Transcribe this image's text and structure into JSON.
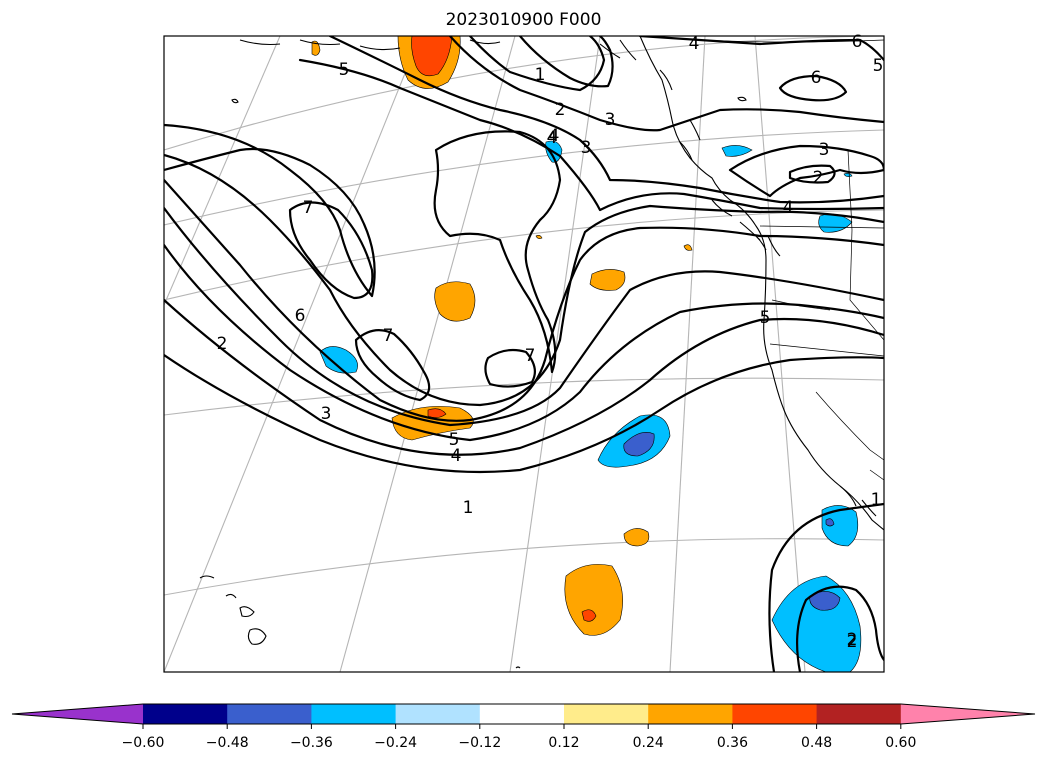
{
  "title": "2023010900 F000",
  "colorbar": {
    "colors": [
      "#9932cc",
      "#00008b",
      "#3a5fcd",
      "#00bfff",
      "#b0e2ff",
      "#ffffff",
      "#ffec8b",
      "#ffa500",
      "#ff4500",
      "#b22222",
      "#ff82ab"
    ],
    "tick_labels": [
      "−0.60",
      "−0.48",
      "−0.36",
      "−0.24",
      "−0.12",
      "0.12",
      "0.24",
      "0.36",
      "0.48",
      "0.60"
    ]
  },
  "contour_labels": [
    "1",
    "2",
    "3",
    "4",
    "5",
    "6",
    "7",
    "7",
    "7",
    "6",
    "5",
    "4",
    "3",
    "2",
    "1",
    "2",
    "3",
    "4",
    "5",
    "6",
    "5",
    "4",
    "3",
    "2",
    "1",
    "2",
    "4"
  ]
}
